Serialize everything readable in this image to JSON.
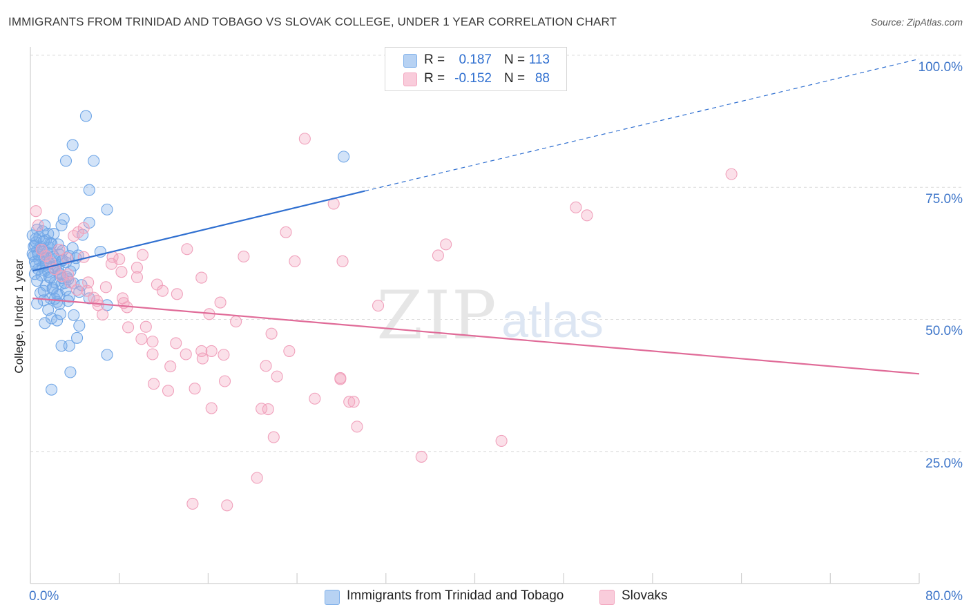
{
  "title": "IMMIGRANTS FROM TRINIDAD AND TOBAGO VS SLOVAK COLLEGE, UNDER 1 YEAR CORRELATION CHART",
  "source": "Source: ZipAtlas.com",
  "watermark": {
    "zip": "ZIP",
    "atlas": "atlas"
  },
  "legend": {
    "r_label": "R =",
    "n_label": "N =",
    "rows": [
      {
        "r": "0.187",
        "n": "113",
        "color": "#a8c8f0"
      },
      {
        "r": "-0.152",
        "n": "88",
        "color": "#f5b8cc"
      }
    ]
  },
  "colors": {
    "blue_point": "#7fb0ea",
    "blue_line": "#2f6fd0",
    "pink_point": "#f3a6bf",
    "pink_line": "#e06b98",
    "grid": "#dcdcdc",
    "tick_text": "#3d75c9"
  },
  "chart_data": {
    "type": "scatter",
    "xlabel": "",
    "ylabel": "College, Under 1 year",
    "xlim": [
      0,
      80
    ],
    "ylim": [
      0,
      100
    ],
    "x_tick_labels": {
      "min": "0.0%",
      "max": "80.0%"
    },
    "y_ticks": [
      {
        "value": 25,
        "label": "25.0%"
      },
      {
        "value": 50,
        "label": "50.0%"
      },
      {
        "value": 75,
        "label": "75.0%"
      },
      {
        "value": 100,
        "label": "100.0%"
      }
    ],
    "grid": true,
    "legend_position": "top-center",
    "series": [
      {
        "name": "Immigrants from Trinidad and Tobago",
        "color": "#7fb0ea",
        "trend": {
          "x0": 0.2,
          "y0": 59.2,
          "x1": 30.1,
          "y1": 74.3,
          "x_dash_end": 80,
          "y_dash_end": 99.3
        },
        "points": [
          [
            5.0,
            88.5
          ],
          [
            3.8,
            83.0
          ],
          [
            3.2,
            80.0
          ],
          [
            5.7,
            80.0
          ],
          [
            28.2,
            80.8
          ],
          [
            5.3,
            74.5
          ],
          [
            6.9,
            70.8
          ],
          [
            3.0,
            69.0
          ],
          [
            5.3,
            68.3
          ],
          [
            2.8,
            67.8
          ],
          [
            1.3,
            67.8
          ],
          [
            0.6,
            67.0
          ],
          [
            1.6,
            66.2
          ],
          [
            4.7,
            66.0
          ],
          [
            2.1,
            66.2
          ],
          [
            0.5,
            65.3
          ],
          [
            1.4,
            65.0
          ],
          [
            1.8,
            64.5
          ],
          [
            2.5,
            64.2
          ],
          [
            0.4,
            64.0
          ],
          [
            0.9,
            63.8
          ],
          [
            3.8,
            63.5
          ],
          [
            2.9,
            63.0
          ],
          [
            0.6,
            63.0
          ],
          [
            1.2,
            62.9
          ],
          [
            6.3,
            62.8
          ],
          [
            1.9,
            62.5
          ],
          [
            2.6,
            62.3
          ],
          [
            3.5,
            62.0
          ],
          [
            0.3,
            62.0
          ],
          [
            1.0,
            61.8
          ],
          [
            1.5,
            61.6
          ],
          [
            2.2,
            61.4
          ],
          [
            0.8,
            61.2
          ],
          [
            2.8,
            61.0
          ],
          [
            3.2,
            60.8
          ],
          [
            1.7,
            60.6
          ],
          [
            0.5,
            60.3
          ],
          [
            1.1,
            60.0
          ],
          [
            2.0,
            59.7
          ],
          [
            0.7,
            59.5
          ],
          [
            1.3,
            59.2
          ],
          [
            2.5,
            58.9
          ],
          [
            0.4,
            58.6
          ],
          [
            1.0,
            58.3
          ],
          [
            1.7,
            58.0
          ],
          [
            3.4,
            57.6
          ],
          [
            0.6,
            57.3
          ],
          [
            2.2,
            57.0
          ],
          [
            2.8,
            56.7
          ],
          [
            1.4,
            56.4
          ],
          [
            3.9,
            56.8
          ],
          [
            4.6,
            56.5
          ],
          [
            2.0,
            56.0
          ],
          [
            3.2,
            55.6
          ],
          [
            1.2,
            55.4
          ],
          [
            4.4,
            55.2
          ],
          [
            0.9,
            55.0
          ],
          [
            2.6,
            54.6
          ],
          [
            3.5,
            54.3
          ],
          [
            1.8,
            54.0
          ],
          [
            5.3,
            54.0
          ],
          [
            1.2,
            53.6
          ],
          [
            2.4,
            53.3
          ],
          [
            0.6,
            53.0
          ],
          [
            3.4,
            53.5
          ],
          [
            6.9,
            52.7
          ],
          [
            1.6,
            51.8
          ],
          [
            2.7,
            51.0
          ],
          [
            3.9,
            50.8
          ],
          [
            1.9,
            50.2
          ],
          [
            2.4,
            49.8
          ],
          [
            1.3,
            49.3
          ],
          [
            4.4,
            48.8
          ],
          [
            4.2,
            46.5
          ],
          [
            2.8,
            45.0
          ],
          [
            3.5,
            45.0
          ],
          [
            6.9,
            43.3
          ],
          [
            3.6,
            40.0
          ],
          [
            1.9,
            36.7
          ],
          [
            0.2,
            62.4
          ],
          [
            0.3,
            63.8
          ],
          [
            0.5,
            64.6
          ],
          [
            0.8,
            65.6
          ],
          [
            1.1,
            66.7
          ],
          [
            1.3,
            61.5
          ],
          [
            1.5,
            62.7
          ],
          [
            1.7,
            63.6
          ],
          [
            1.9,
            64.3
          ],
          [
            2.1,
            61.9
          ],
          [
            2.3,
            60.1
          ],
          [
            2.5,
            59.5
          ],
          [
            2.7,
            58.6
          ],
          [
            2.9,
            57.8
          ],
          [
            3.1,
            56.9
          ],
          [
            3.3,
            58.0
          ],
          [
            3.6,
            59.1
          ],
          [
            3.9,
            60.2
          ],
          [
            4.1,
            61.6
          ],
          [
            4.3,
            62.1
          ],
          [
            0.2,
            65.9
          ],
          [
            0.4,
            60.9
          ],
          [
            0.7,
            62.3
          ],
          [
            1.0,
            63.4
          ],
          [
            1.2,
            64.8
          ],
          [
            1.4,
            60.4
          ],
          [
            1.6,
            59.0
          ],
          [
            1.8,
            57.9
          ],
          [
            2.0,
            55.7
          ],
          [
            2.2,
            53.9
          ],
          [
            2.4,
            54.8
          ],
          [
            2.6,
            52.9
          ],
          [
            2.9,
            61.2
          ]
        ]
      },
      {
        "name": "Slovaks",
        "color": "#f3a6bf",
        "trend": {
          "x0": 0.2,
          "y0": 54.0,
          "x1": 80,
          "y1": 39.7
        },
        "points": [
          [
            24.7,
            84.2
          ],
          [
            63.1,
            77.5
          ],
          [
            27.3,
            71.9
          ],
          [
            49.1,
            71.2
          ],
          [
            50.1,
            69.7
          ],
          [
            0.5,
            70.5
          ],
          [
            0.7,
            67.8
          ],
          [
            4.8,
            67.3
          ],
          [
            4.3,
            66.5
          ],
          [
            3.9,
            65.8
          ],
          [
            23.0,
            66.5
          ],
          [
            37.4,
            64.2
          ],
          [
            14.1,
            63.3
          ],
          [
            36.7,
            62.1
          ],
          [
            19.2,
            61.9
          ],
          [
            7.4,
            61.8
          ],
          [
            8.0,
            61.4
          ],
          [
            4.8,
            61.8
          ],
          [
            23.8,
            61.0
          ],
          [
            28.1,
            61.0
          ],
          [
            10.1,
            62.2
          ],
          [
            2.6,
            63.2
          ],
          [
            3.3,
            61.6
          ],
          [
            9.6,
            59.8
          ],
          [
            3.4,
            58.5
          ],
          [
            9.6,
            58.0
          ],
          [
            11.4,
            56.6
          ],
          [
            5.2,
            57.0
          ],
          [
            6.8,
            56.1
          ],
          [
            5.1,
            55.4
          ],
          [
            13.2,
            54.8
          ],
          [
            8.3,
            54.0
          ],
          [
            5.7,
            54.1
          ],
          [
            17.1,
            53.2
          ],
          [
            8.4,
            53.1
          ],
          [
            6.1,
            52.7
          ],
          [
            8.7,
            52.3
          ],
          [
            31.3,
            52.6
          ],
          [
            16.1,
            51.0
          ],
          [
            6.5,
            50.9
          ],
          [
            18.5,
            49.6
          ],
          [
            8.8,
            48.5
          ],
          [
            10.4,
            48.6
          ],
          [
            21.7,
            47.3
          ],
          [
            10.0,
            46.3
          ],
          [
            13.1,
            45.5
          ],
          [
            11.0,
            45.8
          ],
          [
            15.4,
            44.0
          ],
          [
            16.3,
            44.0
          ],
          [
            23.3,
            44.0
          ],
          [
            11.0,
            43.4
          ],
          [
            17.4,
            43.3
          ],
          [
            14.0,
            43.4
          ],
          [
            15.5,
            42.6
          ],
          [
            12.6,
            41.1
          ],
          [
            21.2,
            41.2
          ],
          [
            27.9,
            38.9
          ],
          [
            27.9,
            38.7
          ],
          [
            22.2,
            39.2
          ],
          [
            17.5,
            38.3
          ],
          [
            11.1,
            37.8
          ],
          [
            14.8,
            36.9
          ],
          [
            12.4,
            36.5
          ],
          [
            25.6,
            35.0
          ],
          [
            28.7,
            34.4
          ],
          [
            29.1,
            34.4
          ],
          [
            16.3,
            33.2
          ],
          [
            21.4,
            33.0
          ],
          [
            20.8,
            33.1
          ],
          [
            29.4,
            29.7
          ],
          [
            42.4,
            27.0
          ],
          [
            21.9,
            27.7
          ],
          [
            35.2,
            24.0
          ],
          [
            20.4,
            20.0
          ],
          [
            14.6,
            15.1
          ],
          [
            17.7,
            14.8
          ],
          [
            1.0,
            63.2
          ],
          [
            1.4,
            62.0
          ],
          [
            1.8,
            60.8
          ],
          [
            2.2,
            59.5
          ],
          [
            2.8,
            58.2
          ],
          [
            3.6,
            57.0
          ],
          [
            4.2,
            55.6
          ],
          [
            6.0,
            53.5
          ],
          [
            7.3,
            60.5
          ],
          [
            8.2,
            59.0
          ],
          [
            11.9,
            55.4
          ],
          [
            15.4,
            57.9
          ]
        ]
      }
    ]
  }
}
